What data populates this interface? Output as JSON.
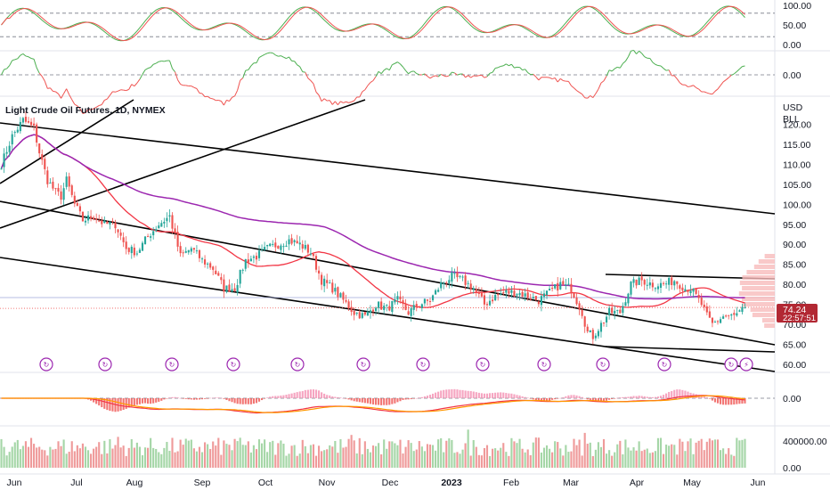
{
  "chart_data": {
    "type": "candlestick",
    "title": "Light Crude Oil Futures, 1D, NYMEX",
    "currency": "USD",
    "unit": "BLL",
    "last_price": "74.24",
    "countdown": "22:57:51",
    "price_axis": {
      "ylim": [
        58,
        127
      ],
      "ticks": [
        "120.00",
        "115.00",
        "110.00",
        "105.00",
        "100.00",
        "95.00",
        "90.00",
        "85.00",
        "80.00",
        "75.00",
        "70.00",
        "65.00",
        "60.00"
      ]
    },
    "time_axis": {
      "labels": [
        "Jun",
        "Jul",
        "Aug",
        "Sep",
        "Oct",
        "Nov",
        "Dec",
        "2023",
        "Feb",
        "Mar",
        "Apr",
        "May",
        "Jun"
      ]
    },
    "close_anchors": [
      [
        0,
        110
      ],
      [
        4,
        117
      ],
      [
        8,
        121
      ],
      [
        12,
        119
      ],
      [
        14,
        113
      ],
      [
        17,
        106
      ],
      [
        20,
        103
      ],
      [
        22,
        102
      ],
      [
        24,
        106
      ],
      [
        27,
        100
      ],
      [
        30,
        96
      ],
      [
        34,
        97
      ],
      [
        38,
        95
      ],
      [
        42,
        95
      ],
      [
        46,
        89
      ],
      [
        50,
        88
      ],
      [
        54,
        92
      ],
      [
        58,
        95
      ],
      [
        62,
        97
      ],
      [
        66,
        87
      ],
      [
        70,
        89
      ],
      [
        74,
        86
      ],
      [
        78,
        84
      ],
      [
        82,
        79
      ],
      [
        86,
        79
      ],
      [
        90,
        86
      ],
      [
        94,
        87
      ],
      [
        98,
        89
      ],
      [
        102,
        90
      ],
      [
        106,
        91
      ],
      [
        110,
        90
      ],
      [
        114,
        88
      ],
      [
        118,
        81
      ],
      [
        122,
        79
      ],
      [
        126,
        76
      ],
      [
        130,
        73
      ],
      [
        134,
        72
      ],
      [
        138,
        75
      ],
      [
        142,
        74
      ],
      [
        146,
        76
      ],
      [
        150,
        73
      ],
      [
        154,
        75
      ],
      [
        158,
        76
      ],
      [
        162,
        80
      ],
      [
        166,
        82
      ],
      [
        170,
        81
      ],
      [
        174,
        79
      ],
      [
        178,
        75
      ],
      [
        182,
        77
      ],
      [
        186,
        78
      ],
      [
        190,
        78
      ],
      [
        194,
        77
      ],
      [
        198,
        76
      ],
      [
        202,
        78
      ],
      [
        206,
        80
      ],
      [
        210,
        79
      ],
      [
        212,
        76
      ],
      [
        214,
        73
      ],
      [
        216,
        68
      ],
      [
        218,
        67
      ],
      [
        220,
        69
      ],
      [
        224,
        73
      ],
      [
        228,
        73
      ],
      [
        232,
        80
      ],
      [
        236,
        81
      ],
      [
        240,
        80
      ],
      [
        244,
        80
      ],
      [
        248,
        81
      ],
      [
        252,
        79
      ],
      [
        254,
        79
      ],
      [
        256,
        77
      ],
      [
        258,
        75
      ],
      [
        260,
        72
      ],
      [
        262,
        70
      ],
      [
        264,
        71
      ],
      [
        266,
        72
      ],
      [
        268,
        72
      ],
      [
        270,
        72
      ],
      [
        272,
        73
      ],
      [
        274,
        74
      ]
    ],
    "total_bars": 275,
    "moving_averages": [
      {
        "period_short": "red",
        "color": "#f23645"
      },
      {
        "period_long": "purple",
        "color": "#9c27b0"
      }
    ],
    "stochastic_rsi": {
      "levels": [
        "100.00",
        "50.00",
        "0.00"
      ]
    },
    "oscillator_2": {
      "levels": [
        "0.00"
      ]
    },
    "macd": {
      "levels": [
        "0.00"
      ]
    },
    "volume": {
      "ticks": [
        "400000.00",
        "0.00"
      ]
    }
  },
  "colors": {
    "up": "#26a69a",
    "down": "#ef5350",
    "ma_fast": "#f23645",
    "ma_slow": "#9c27b0",
    "badge": "#9c27b0",
    "price_bg": "#b22833"
  }
}
